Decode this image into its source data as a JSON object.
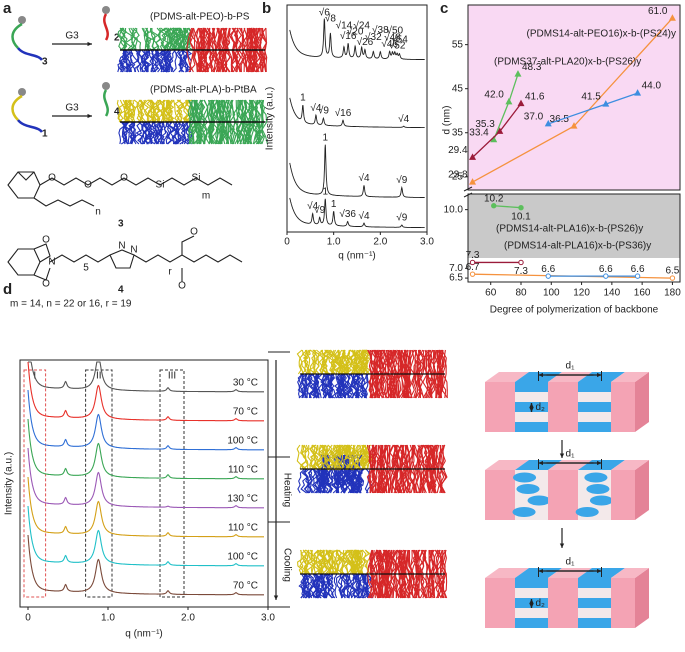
{
  "figure": {
    "panel_labels": [
      "a",
      "b",
      "c",
      "d"
    ],
    "reagent": [
      "G3",
      "G3"
    ],
    "icons": [
      "3",
      "2",
      "1",
      "4"
    ],
    "products": [
      "(PDMS-alt-PEO)-b-PS",
      "(PDMS-alt-PLA)-b-PtBA"
    ],
    "structure_numbers": [
      "3",
      "4"
    ],
    "atoms3": [
      "O",
      "O",
      "O",
      "Si",
      "Si",
      "n",
      "m"
    ],
    "atoms4": [
      "O",
      "O",
      "N",
      "N",
      "N",
      "5",
      "r",
      "O",
      "O"
    ],
    "params": "m = 14, n = 22 or 16, r = 19",
    "spacings": [
      "d₁",
      "d₂",
      "d₁",
      "d₁",
      "d₂"
    ]
  },
  "chart_data": [
    {
      "type": "line",
      "ylabel": "Intensity (a.u.)",
      "xlabel": "q (nm⁻¹)",
      "xlim": [
        0,
        3
      ],
      "xticks": [
        0,
        {
          "value": 1,
          "label": "1.0"
        },
        {
          "value": 2,
          "label": "2.0"
        },
        {
          "value": 3,
          "label": "3.0"
        }
      ],
      "traces": [
        {
          "color": "#222",
          "annotations": [
            {
              "text": "√6",
              "q": 0.8,
              "height": 3.2
            },
            {
              "text": "√8",
              "q": 0.93,
              "height": 2.0
            },
            {
              "text": "√14",
              "q": 1.22,
              "height": 0.9
            },
            {
              "text": "√16",
              "q": 1.31,
              "height": 1.2
            },
            {
              "text": "√20",
              "q": 1.46,
              "height": 1.0
            },
            {
              "text": "√24",
              "q": 1.6,
              "height": 0.9
            },
            {
              "text": "√26",
              "q": 1.67,
              "height": 0.7
            },
            {
              "text": "√32",
              "q": 1.85,
              "height": 0.6
            },
            {
              "text": "√38",
              "q": 2.0,
              "height": 0.6
            },
            {
              "text": "√46",
              "q": 2.2,
              "height": 0.6
            },
            {
              "text": "√48",
              "q": 2.26,
              "height": 0.5
            },
            {
              "text": "√50",
              "q": 2.31,
              "height": 0.5
            },
            {
              "text": "√52",
              "q": 2.36,
              "height": 0.4
            },
            {
              "text": "√54",
              "q": 2.41,
              "height": 0.4
            }
          ]
        },
        {
          "color": "#222",
          "annotations": [
            {
              "text": "1",
              "q": 0.34,
              "height": 1.4
            },
            {
              "text": "√4",
              "q": 0.62,
              "height": 0.8
            },
            {
              "text": "√9",
              "q": 0.78,
              "height": 0.6
            },
            {
              "text": "√16",
              "q": 1.2,
              "height": 0.5
            },
            {
              "text": "√4",
              "q": 2.5,
              "height": 0.1,
              "color": "#d62728"
            }
          ]
        },
        {
          "color": "#222",
          "annotations": [
            {
              "text": "1",
              "q": 0.82,
              "height": 3.6
            },
            {
              "text": "√4",
              "q": 1.65,
              "height": 0.8
            },
            {
              "text": "√9",
              "q": 2.46,
              "height": 0.7
            }
          ]
        },
        {
          "color": "#222",
          "annotations": [
            {
              "text": "√4",
              "q": 0.55,
              "height": 0.9
            },
            {
              "text": "√9",
              "q": 0.7,
              "height": 0.6
            },
            {
              "text": "1",
              "q": 0.82,
              "height": 2.2
            },
            {
              "text": "1",
              "q": 1.0,
              "height": 1.2,
              "color": "#d62728"
            },
            {
              "text": "√36",
              "q": 1.3,
              "height": 0.4
            },
            {
              "text": "√4",
              "q": 1.65,
              "height": 0.3,
              "color": "#d62728"
            },
            {
              "text": "√9",
              "q": 2.46,
              "height": 0.2,
              "color": "#d62728"
            }
          ]
        }
      ]
    },
    {
      "type": "scatter",
      "xlabel": "Degree of polymerization of backbone",
      "ylabel": "d (nm)",
      "xlim": [
        45,
        185
      ],
      "xticks": [
        60,
        80,
        100,
        120,
        140,
        160,
        180
      ],
      "ylim": [
        22,
        64
      ],
      "yticks": [
        25,
        35,
        45,
        55
      ],
      "ylim_lower": [
        6.3,
        10.8
      ],
      "yticks_lower": [
        6.5,
        {
          "value": 7,
          "label": "7.0"
        },
        {
          "value": 10,
          "label": "10.0"
        }
      ],
      "series": [
        {
          "name": "(PDMS14-alt-PEO16)x-b-(PS24)y",
          "color": "#f5923e",
          "x": [
            48,
            115,
            180
          ],
          "values": [
            23.8,
            36.5,
            61.0
          ],
          "value_labels": [
            "23.8",
            "36.5",
            "61.0"
          ],
          "lower_x": [
            48,
            180
          ],
          "lower_values": [
            6.7,
            6.5
          ],
          "lower_value_labels": [
            "6.7",
            "6.5"
          ]
        },
        {
          "name": "(PDMS37-alt-PLA20)x-b-(PS26)y",
          "color": "#5cbf5c",
          "x": [
            62,
            72,
            78
          ],
          "values": [
            33.4,
            42.0,
            48.3
          ],
          "value_labels": [
            "33.4",
            "42.0",
            "48.3"
          ],
          "lower_x": [
            62,
            80
          ],
          "lower_values": [
            10.2,
            10.1
          ],
          "lower_value_labels": [
            "10.2",
            "10.1"
          ]
        },
        {
          "name": "(PDMS14-alt-PLA16)x-b-(PS26)y",
          "color": "#9b1b3a",
          "x": [
            48,
            66,
            80
          ],
          "values": [
            29.4,
            35.3,
            41.6
          ],
          "value_labels": [
            "29.4",
            "35.3",
            "41.6"
          ],
          "lower_x": [
            48,
            80
          ],
          "lower_values": [
            7.3,
            7.3
          ],
          "lower_value_labels": [
            "7.3",
            "7.3"
          ]
        },
        {
          "name": "(PDMS14-alt-PLA16)x-b-(PS36)y",
          "color": "#3d8ee0",
          "x": [
            98,
            136,
            157
          ],
          "values": [
            37.0,
            41.5,
            44.0
          ],
          "value_labels": [
            "37.0",
            "41.5",
            "44.0"
          ],
          "lower_x": [
            98,
            136,
            157
          ],
          "lower_values": [
            6.6,
            6.6,
            6.6
          ],
          "lower_value_labels": [
            "6.6",
            "6.6",
            "6.6"
          ]
        }
      ]
    },
    {
      "type": "line",
      "ylabel": "Intensity (a.u.)",
      "xlabel": "q (nm⁻¹)",
      "xlim": [
        -0.1,
        3
      ],
      "xticks": [
        0,
        {
          "value": 1,
          "label": "1.0"
        },
        {
          "value": 2,
          "label": "2.0"
        },
        {
          "value": 3,
          "label": "3.0"
        }
      ],
      "peaks": [
        {
          "q": 0.47,
          "height": 0.5
        },
        {
          "q": 0.88,
          "height": 2.4
        },
        {
          "q": 1.75,
          "height": 0.25
        },
        {
          "q": 2.6,
          "height": 0.15
        }
      ],
      "regions": [
        {
          "label": "I",
          "range": [
            -0.05,
            0.22
          ],
          "color": "#e05050"
        },
        {
          "label": "II",
          "range": [
            0.72,
            1.05
          ],
          "color": "#333"
        },
        {
          "label": "III",
          "range": [
            1.65,
            1.95
          ],
          "color": "#333"
        }
      ],
      "series": [
        {
          "name": "30 °C",
          "color": "#555"
        },
        {
          "name": "70 °C",
          "color": "#e8312a"
        },
        {
          "name": "100 °C",
          "color": "#2f6fd6"
        },
        {
          "name": "110 °C",
          "color": "#3aa655"
        },
        {
          "name": "130 °C",
          "color": "#9b59b6"
        },
        {
          "name": "110 °C",
          "color": "#d4a017"
        },
        {
          "name": "100 °C",
          "color": "#20c0c8"
        },
        {
          "name": "70 °C",
          "color": "#7b4a3a"
        }
      ],
      "phases": [
        "Heating",
        "Cooling"
      ]
    }
  ]
}
